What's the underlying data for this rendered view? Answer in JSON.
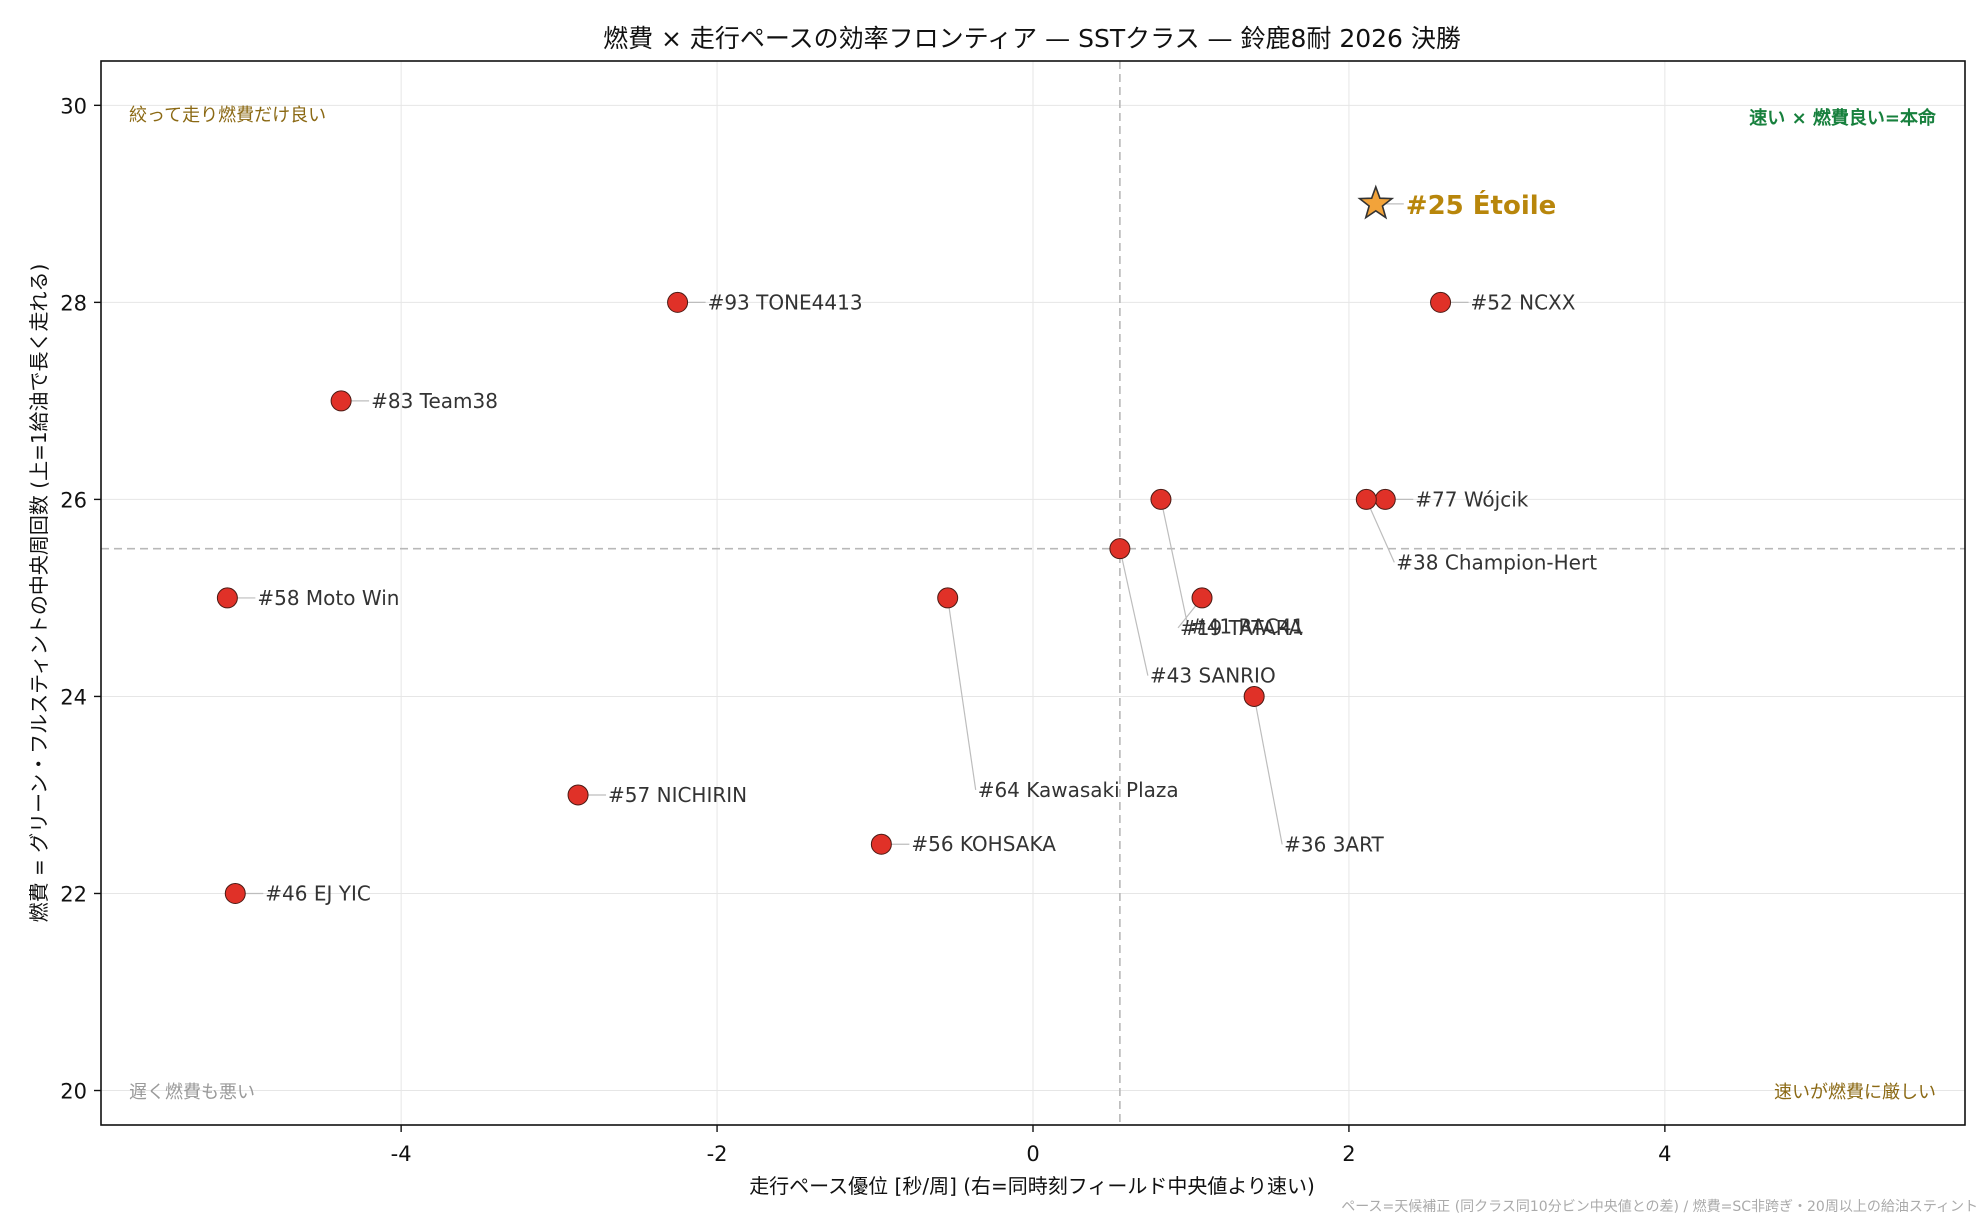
{
  "chart_data": {
    "type": "scatter",
    "title": "燃費 × 走行ペースの効率フロンティア — SSTクラス — 鈴鹿8耐 2026 決勝",
    "xlabel": "走行ペース優位 [秒/周] (右=同時刻フィールド中央値より速い)",
    "ylabel": "燃費 = グリーン・フルスティントの中央周回数 (上=1給油で長く走れる)",
    "xlim": [
      -5.9,
      5.9
    ],
    "ylim": [
      19.65,
      30.45
    ],
    "xticks": [
      -4,
      -2,
      0,
      2,
      4
    ],
    "xtick_labels": [
      "-4",
      "-2",
      "0",
      "2",
      "4"
    ],
    "yticks": [
      20,
      22,
      24,
      26,
      28,
      30
    ],
    "ytick_labels": [
      "20",
      "22",
      "24",
      "26",
      "28",
      "30"
    ],
    "grid": true,
    "median_lines": {
      "x": 0.55,
      "y": 25.5
    },
    "points": [
      {
        "label": "#93 TONE4413",
        "x": -2.25,
        "y": 28.0
      },
      {
        "label": "#52 NCXX",
        "x": 2.58,
        "y": 28.0
      },
      {
        "label": "#83 Team38",
        "x": -4.38,
        "y": 27.0
      },
      {
        "label": "#77 Wójcik",
        "x": 2.23,
        "y": 26.0
      },
      {
        "label": "#38 Champion-Hert",
        "x": 2.11,
        "y": 26.0
      },
      {
        "label": "#41 RAC41",
        "x": 0.81,
        "y": 26.0
      },
      {
        "label": "#43 SANRIO",
        "x": 0.55,
        "y": 25.5
      },
      {
        "label": "#58 Moto Win",
        "x": -5.1,
        "y": 25.0
      },
      {
        "label": "#64 Kawasaki Plaza",
        "x": -0.54,
        "y": 25.0
      },
      {
        "label": "#19 TATARA",
        "x": 1.07,
        "y": 25.0
      },
      {
        "label": "#36 3ART",
        "x": 1.4,
        "y": 24.0
      },
      {
        "label": "#57 NICHIRIN",
        "x": -2.88,
        "y": 23.0
      },
      {
        "label": "#56 KOHSAKA",
        "x": -0.96,
        "y": 22.5
      },
      {
        "label": "#46 EJ YIC",
        "x": -5.05,
        "y": 22.0
      }
    ],
    "highlight": {
      "label": "#25 Étoile",
      "x": 2.17,
      "y": 29.0
    },
    "quadrant_labels": {
      "top_left": "絞って走り燃費だけ良い",
      "top_right": "速い × 燃費良い=本命",
      "bottom_left": "遅く燃費も悪い",
      "bottom_right": "速いが燃費に厳しい"
    },
    "footnote": "ペース=天候補正 (同クラス同10分ビン中央値との差) / 燃費=SC非跨ぎ・20周以上の給油スティント"
  },
  "colors": {
    "point_fill": "#e03128",
    "point_edge": "#4a1a14",
    "highlight_fill": "#f2a33a",
    "highlight_edge": "#333333",
    "highlight_text": "#b8860b",
    "top_right_text": "#17803d",
    "gold_text": "#8b6914",
    "gray_text": "#9a9a9a"
  }
}
